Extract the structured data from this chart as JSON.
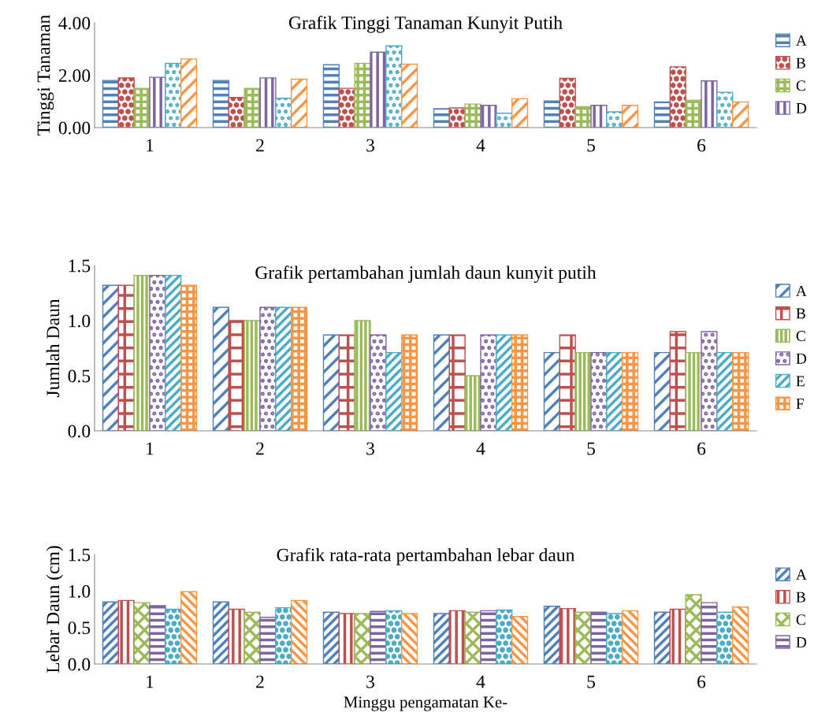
{
  "chart_data": [
    {
      "type": "bar",
      "title": "Grafik Tinggi Tanaman Kunyit Putih",
      "ylabel": "Tinggi Tanaman",
      "categories": [
        "1",
        "2",
        "3",
        "4",
        "5",
        "6"
      ],
      "ylim": [
        0,
        4
      ],
      "yticks": [
        {
          "value": 0,
          "label": "0.00"
        },
        {
          "value": 2,
          "label": "2.00"
        },
        {
          "value": 4,
          "label": "4.00"
        }
      ],
      "grid": false,
      "legend": "right",
      "series": [
        {
          "name": "A",
          "color": "#4f81bd",
          "values": [
            1.8,
            1.8,
            2.4,
            0.72,
            1.02,
            0.98
          ]
        },
        {
          "name": "B",
          "color": "#c0504d",
          "values": [
            1.9,
            1.15,
            1.5,
            0.75,
            1.88,
            2.32
          ]
        },
        {
          "name": "C",
          "color": "#9bbb59",
          "values": [
            1.5,
            1.5,
            2.45,
            0.9,
            0.8,
            1.05
          ]
        },
        {
          "name": "D",
          "color": "#8064a2",
          "values": [
            1.92,
            1.9,
            2.88,
            0.85,
            0.85,
            1.78
          ]
        },
        {
          "color": "#4bacc6",
          "values": [
            2.45,
            1.12,
            3.12,
            0.55,
            0.6,
            1.35
          ]
        },
        {
          "color": "#f79646",
          "values": [
            2.62,
            1.85,
            2.42,
            1.1,
            0.85,
            0.98
          ]
        }
      ]
    },
    {
      "type": "bar",
      "title": "Grafik pertambahan jumlah daun kunyit putih",
      "ylabel": "Jumlah Daun",
      "categories": [
        "1",
        "2",
        "3",
        "4",
        "5",
        "6"
      ],
      "ylim": [
        0,
        1.5
      ],
      "yticks": [
        {
          "value": 0,
          "label": "0.0"
        },
        {
          "value": 0.5,
          "label": "0.5"
        },
        {
          "value": 1,
          "label": "1.0"
        },
        {
          "value": 1.5,
          "label": "1.5"
        }
      ],
      "grid": false,
      "legend": "right",
      "series": [
        {
          "name": "A",
          "color": "#4f81bd",
          "values": [
            1.32,
            1.12,
            0.87,
            0.87,
            0.71,
            0.71
          ]
        },
        {
          "name": "B",
          "color": "#c0504d",
          "values": [
            1.32,
            1.0,
            0.87,
            0.87,
            0.87,
            0.9
          ]
        },
        {
          "name": "C",
          "color": "#9bbb59",
          "values": [
            1.41,
            1.0,
            1.0,
            0.5,
            0.71,
            0.71
          ]
        },
        {
          "name": "D",
          "color": "#8064a2",
          "values": [
            1.41,
            1.12,
            0.87,
            0.87,
            0.71,
            0.9
          ]
        },
        {
          "name": "E",
          "color": "#4bacc6",
          "values": [
            1.41,
            1.12,
            0.71,
            0.87,
            0.71,
            0.71
          ]
        },
        {
          "name": "F",
          "color": "#f79646",
          "values": [
            1.32,
            1.12,
            0.87,
            0.87,
            0.71,
            0.71
          ]
        }
      ]
    },
    {
      "type": "bar",
      "title": "Grafik rata-rata pertambahan lebar daun",
      "ylabel": "Lebar Daun (cm)",
      "xlabel": "Minggu pengamatan Ke-",
      "categories": [
        "1",
        "2",
        "3",
        "4",
        "5",
        "6"
      ],
      "ylim": [
        0,
        1.5
      ],
      "yticks": [
        {
          "value": 0,
          "label": "0.0"
        },
        {
          "value": 0.5,
          "label": "0.5"
        },
        {
          "value": 1,
          "label": "1.0"
        },
        {
          "value": 1.5,
          "label": "1.5"
        }
      ],
      "grid": false,
      "legend": "right",
      "series": [
        {
          "name": "A",
          "color": "#4f81bd",
          "values": [
            0.85,
            0.85,
            0.71,
            0.69,
            0.79,
            0.71
          ]
        },
        {
          "name": "B",
          "color": "#c0504d",
          "values": [
            0.87,
            0.75,
            0.69,
            0.73,
            0.76,
            0.75
          ]
        },
        {
          "name": "C",
          "color": "#9bbb59",
          "values": [
            0.84,
            0.71,
            0.69,
            0.71,
            0.71,
            0.95
          ]
        },
        {
          "name": "D",
          "color": "#8064a2",
          "values": [
            0.8,
            0.64,
            0.72,
            0.73,
            0.71,
            0.84
          ]
        },
        {
          "color": "#4bacc6",
          "values": [
            0.75,
            0.77,
            0.73,
            0.74,
            0.69,
            0.71
          ]
        },
        {
          "color": "#f79646",
          "values": [
            0.99,
            0.87,
            0.69,
            0.65,
            0.73,
            0.78
          ]
        }
      ]
    }
  ]
}
